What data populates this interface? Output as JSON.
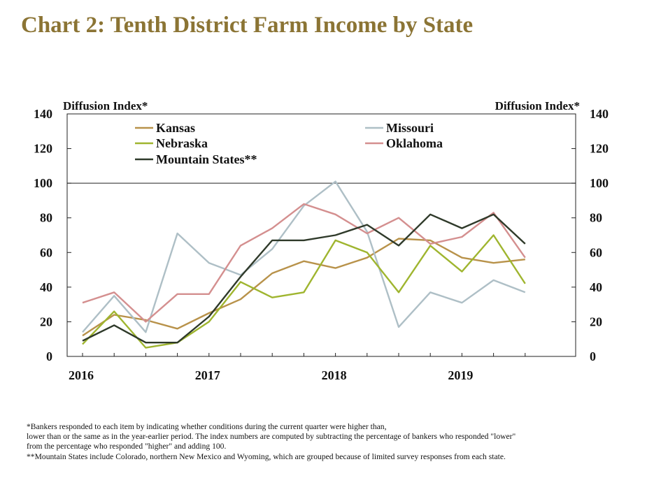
{
  "title": "Chart 2: Tenth District Farm Income by State",
  "footnotes": [
    "*Bankers responded to each item by indicating whether conditions during the current quarter were higher than,",
    "lower than or the same as in the year-earlier period.  The index numbers are computed by subtracting the percentage of bankers who responded \"lower\"",
    "from the percentage who responded \"higher\" and adding 100.",
    "**Mountain States include Colorado, northern New Mexico and Wyoming, which are grouped because of limited survey responses from each state."
  ],
  "chart_data": {
    "type": "line",
    "ylabel_left": "Diffusion Index*",
    "ylabel_right": "Diffusion Index*",
    "ylim": [
      0,
      140
    ],
    "yticks": [
      0,
      20,
      40,
      60,
      80,
      100,
      120,
      140
    ],
    "xticks": [
      "2016",
      "2017",
      "2018",
      "2019"
    ],
    "x": [
      "2016Q1",
      "2016Q2",
      "2016Q3",
      "2016Q4",
      "2017Q1",
      "2017Q2",
      "2017Q3",
      "2017Q4",
      "2018Q1",
      "2018Q2",
      "2018Q3",
      "2018Q4",
      "2019Q1",
      "2019Q2",
      "2019Q3"
    ],
    "reference_line": 100,
    "legend": "top",
    "series": [
      {
        "name": "Kansas",
        "color": "#b8924a",
        "values": [
          12,
          24,
          21,
          16,
          25,
          33,
          48,
          55,
          51,
          57,
          68,
          67,
          57,
          54,
          56
        ]
      },
      {
        "name": "Missouri",
        "color": "#aebfc6",
        "values": [
          14,
          35,
          14,
          71,
          54,
          47,
          62,
          87,
          101,
          72,
          17,
          37,
          31,
          44,
          37
        ]
      },
      {
        "name": "Nebraska",
        "color": "#9fb52f",
        "values": [
          7,
          26,
          5,
          8,
          20,
          43,
          34,
          37,
          67,
          60,
          37,
          64,
          49,
          70,
          42
        ]
      },
      {
        "name": "Oklahoma",
        "color": "#d48f8f",
        "values": [
          31,
          37,
          20,
          36,
          36,
          64,
          74,
          88,
          82,
          71,
          80,
          65,
          69,
          83,
          57
        ]
      },
      {
        "name": "Mountain States**",
        "color": "#2f3a2a",
        "values": [
          9,
          18,
          8,
          8,
          23,
          46,
          67,
          67,
          70,
          76,
          64,
          82,
          74,
          82,
          65
        ]
      }
    ]
  }
}
